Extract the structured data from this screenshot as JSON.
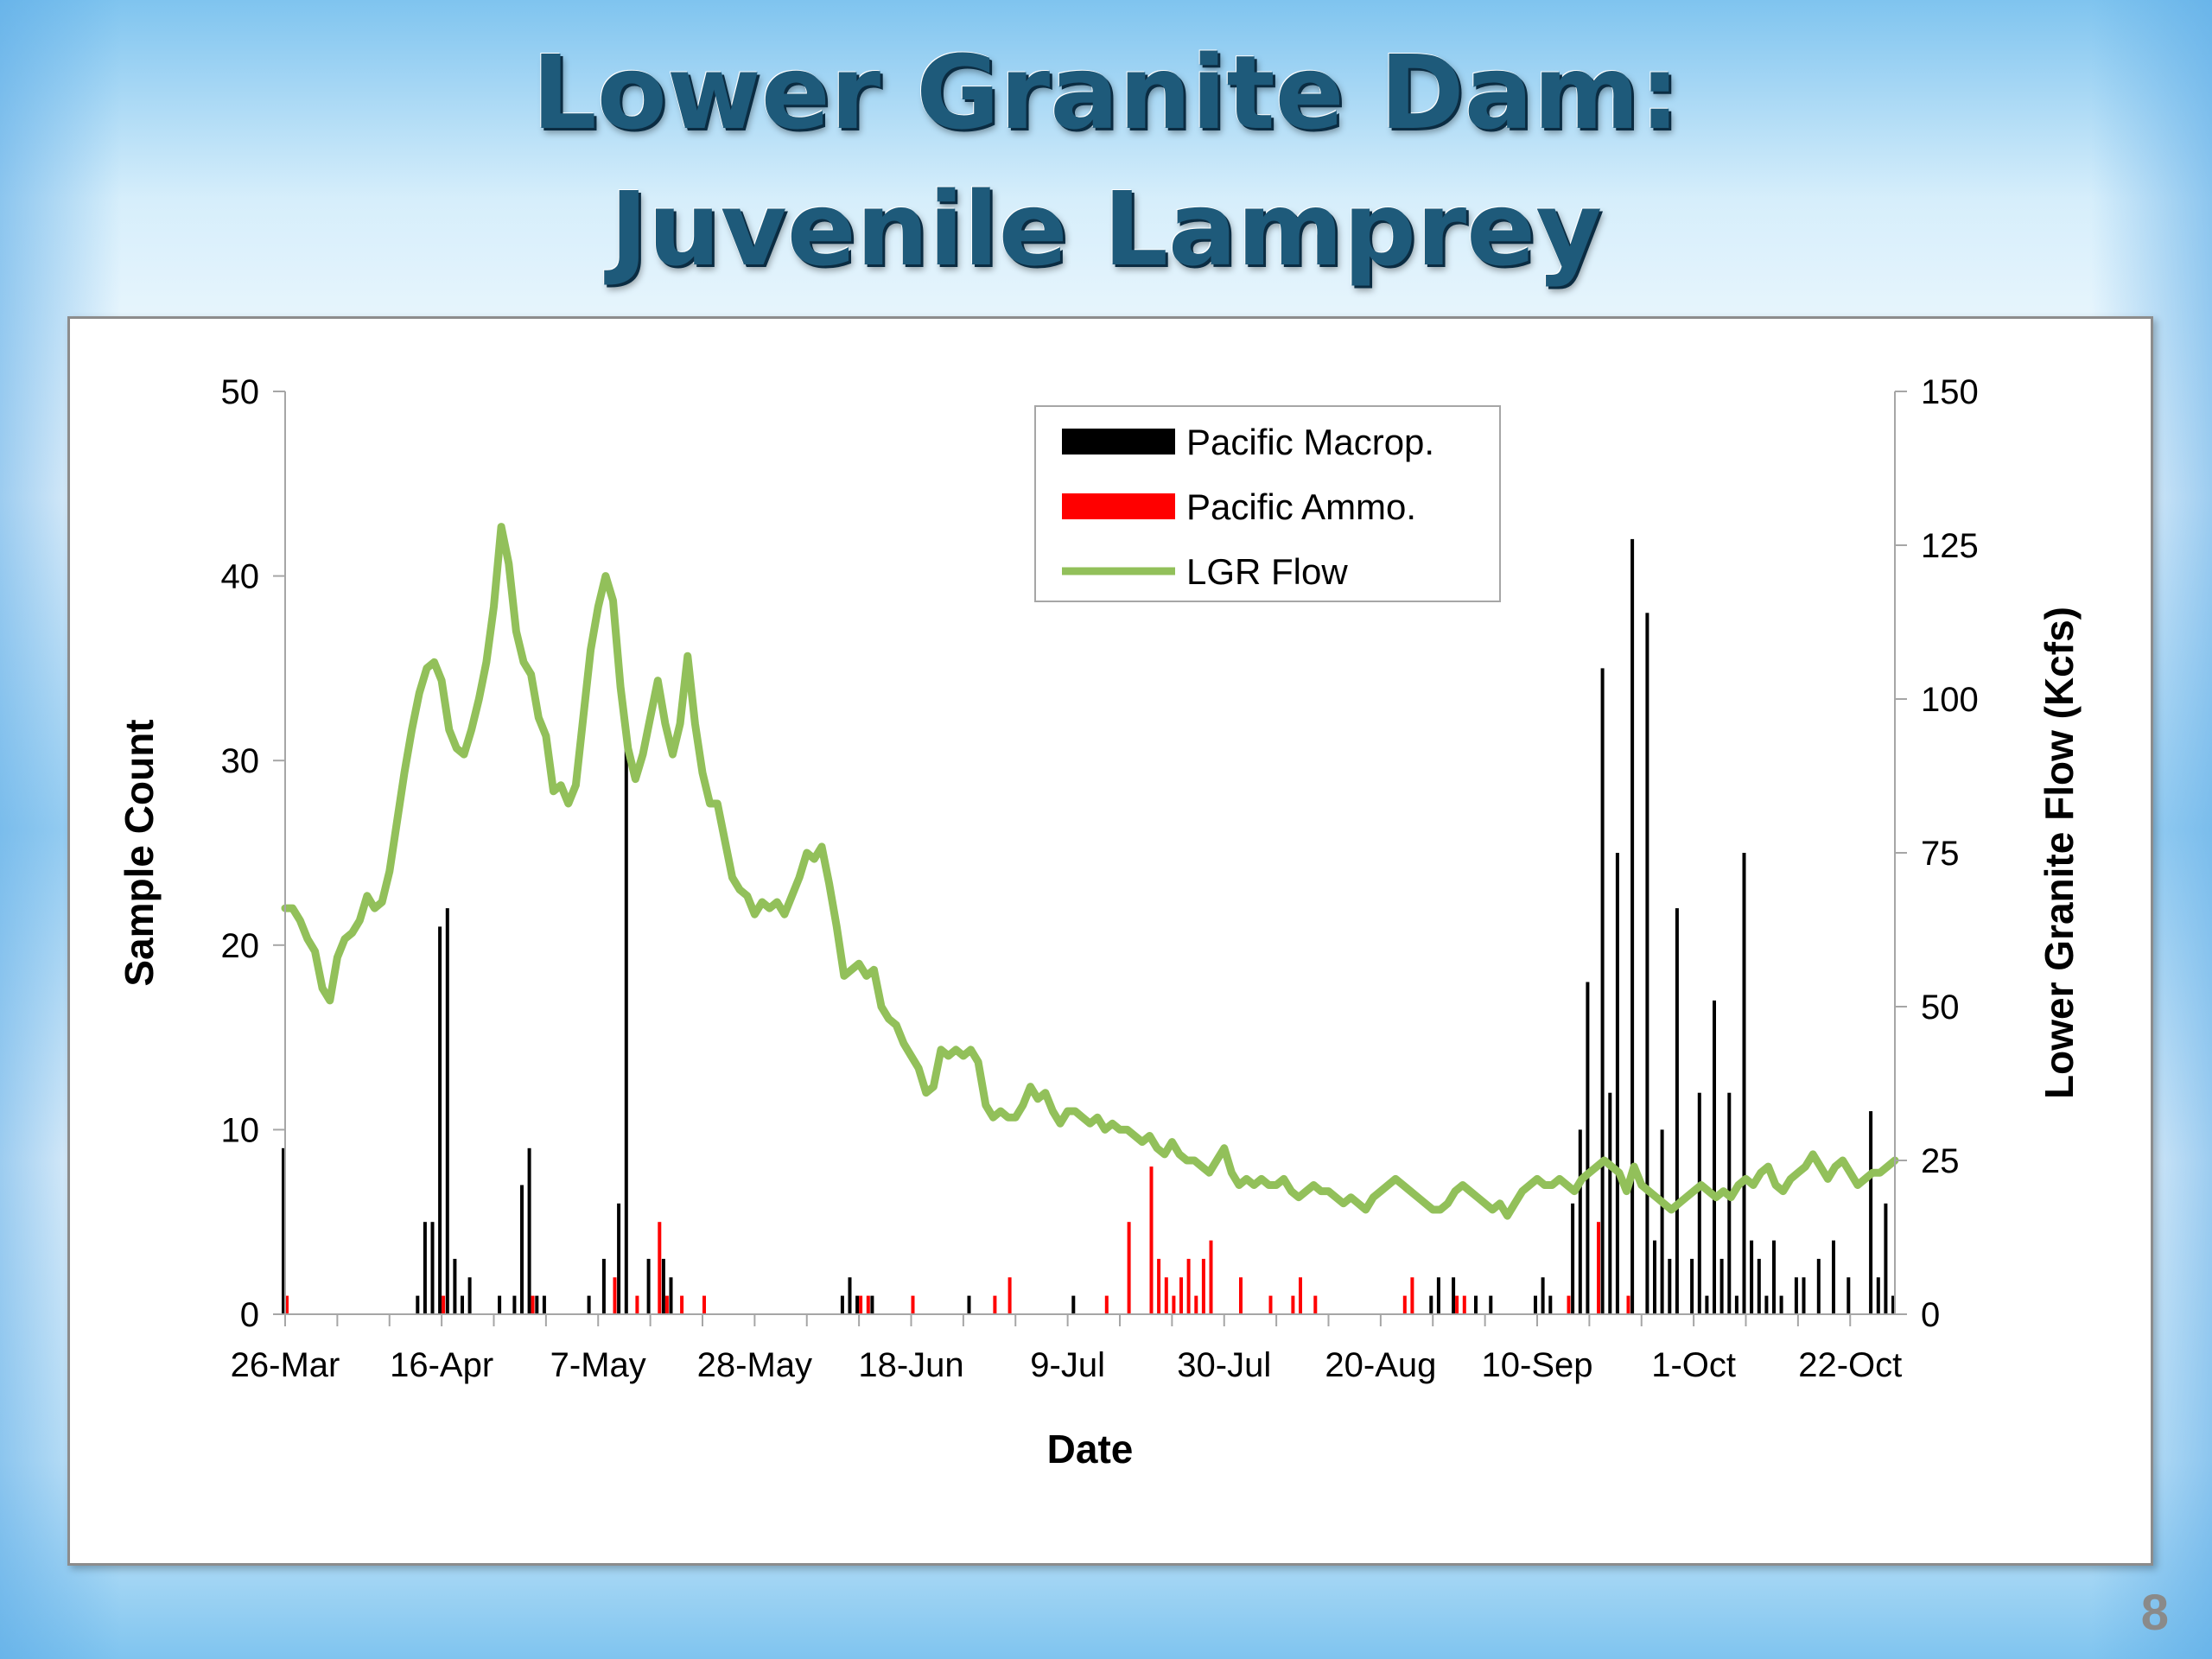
{
  "slide": {
    "title_line1": "Lower Granite Dam:",
    "title_line2": "Juvenile Lamprey",
    "page_number": "8"
  },
  "chart_data": {
    "type": "bar",
    "combo": "bar + line (secondary axis)",
    "xlabel": "Date",
    "ylabel": "Sample Count",
    "y2label": "Lower Granite Flow (Kcfs)",
    "ylim": [
      0,
      50
    ],
    "y2lim": [
      0,
      150
    ],
    "yticks": [
      0,
      10,
      20,
      30,
      40,
      50
    ],
    "y2ticks": [
      0,
      25,
      50,
      75,
      100,
      125,
      150
    ],
    "x_tick_labels": [
      "26-Mar",
      "16-Apr",
      "7-May",
      "28-May",
      "18-Jun",
      "9-Jul",
      "30-Jul",
      "20-Aug",
      "10-Sep",
      "1-Oct",
      "22-Oct"
    ],
    "x_range_days": [
      0,
      216
    ],
    "x_origin_label": "26-Mar",
    "legend_position": "top-center",
    "grid": false,
    "series": [
      {
        "name": "Pacific Macrop.",
        "type": "bar",
        "color": "#000000",
        "points": [
          [
            0,
            9
          ],
          [
            18,
            1
          ],
          [
            19,
            5
          ],
          [
            20,
            5
          ],
          [
            21,
            21
          ],
          [
            22,
            22
          ],
          [
            23,
            3
          ],
          [
            24,
            1
          ],
          [
            25,
            2
          ],
          [
            29,
            1
          ],
          [
            31,
            1
          ],
          [
            32,
            7
          ],
          [
            33,
            9
          ],
          [
            34,
            1
          ],
          [
            35,
            1
          ],
          [
            41,
            1
          ],
          [
            43,
            3
          ],
          [
            45,
            6
          ],
          [
            46,
            32
          ],
          [
            49,
            3
          ],
          [
            51,
            3
          ],
          [
            52,
            2
          ],
          [
            75,
            1
          ],
          [
            76,
            2
          ],
          [
            77,
            1
          ],
          [
            79,
            1
          ],
          [
            92,
            1
          ],
          [
            106,
            1
          ],
          [
            154,
            1
          ],
          [
            155,
            2
          ],
          [
            157,
            2
          ],
          [
            160,
            1
          ],
          [
            162,
            1
          ],
          [
            168,
            1
          ],
          [
            169,
            2
          ],
          [
            170,
            1
          ],
          [
            173,
            6
          ],
          [
            174,
            10
          ],
          [
            175,
            18
          ],
          [
            177,
            35
          ],
          [
            178,
            12
          ],
          [
            179,
            25
          ],
          [
            181,
            42
          ],
          [
            183,
            38
          ],
          [
            184,
            4
          ],
          [
            185,
            10
          ],
          [
            186,
            3
          ],
          [
            187,
            22
          ],
          [
            189,
            3
          ],
          [
            190,
            12
          ],
          [
            191,
            1
          ],
          [
            192,
            17
          ],
          [
            193,
            3
          ],
          [
            194,
            12
          ],
          [
            195,
            1
          ],
          [
            196,
            25
          ],
          [
            197,
            4
          ],
          [
            198,
            3
          ],
          [
            199,
            1
          ],
          [
            200,
            4
          ],
          [
            201,
            1
          ],
          [
            203,
            2
          ],
          [
            204,
            2
          ],
          [
            206,
            3
          ],
          [
            208,
            4
          ],
          [
            210,
            2
          ],
          [
            213,
            11
          ],
          [
            214,
            2
          ],
          [
            215,
            6
          ],
          [
            216,
            1
          ]
        ]
      },
      {
        "name": "Pacific Ammo.",
        "type": "bar",
        "color": "#ff0000",
        "points": [
          [
            0,
            1
          ],
          [
            21,
            1
          ],
          [
            33,
            1
          ],
          [
            44,
            2
          ],
          [
            47,
            1
          ],
          [
            50,
            5
          ],
          [
            51,
            1
          ],
          [
            53,
            1
          ],
          [
            56,
            1
          ],
          [
            77,
            1
          ],
          [
            78,
            1
          ],
          [
            84,
            1
          ],
          [
            95,
            1
          ],
          [
            97,
            2
          ],
          [
            110,
            1
          ],
          [
            113,
            5
          ],
          [
            116,
            8
          ],
          [
            117,
            3
          ],
          [
            118,
            2
          ],
          [
            119,
            1
          ],
          [
            120,
            2
          ],
          [
            121,
            3
          ],
          [
            122,
            1
          ],
          [
            123,
            3
          ],
          [
            124,
            4
          ],
          [
            128,
            2
          ],
          [
            132,
            1
          ],
          [
            135,
            1
          ],
          [
            136,
            2
          ],
          [
            138,
            1
          ],
          [
            150,
            1
          ],
          [
            151,
            2
          ],
          [
            157,
            1
          ],
          [
            158,
            1
          ],
          [
            172,
            1
          ],
          [
            176,
            5
          ],
          [
            180,
            1
          ]
        ]
      },
      {
        "name": "LGR Flow",
        "type": "line",
        "axis": "secondary",
        "color": "#92c05a",
        "points": [
          [
            0,
            66
          ],
          [
            1,
            66
          ],
          [
            2,
            64
          ],
          [
            3,
            61
          ],
          [
            4,
            59
          ],
          [
            5,
            53
          ],
          [
            6,
            51
          ],
          [
            7,
            58
          ],
          [
            8,
            61
          ],
          [
            9,
            62
          ],
          [
            10,
            64
          ],
          [
            11,
            68
          ],
          [
            12,
            66
          ],
          [
            13,
            67
          ],
          [
            14,
            72
          ],
          [
            15,
            80
          ],
          [
            16,
            88
          ],
          [
            17,
            95
          ],
          [
            18,
            101
          ],
          [
            19,
            105
          ],
          [
            20,
            106
          ],
          [
            21,
            103
          ],
          [
            22,
            95
          ],
          [
            23,
            92
          ],
          [
            24,
            91
          ],
          [
            25,
            95
          ],
          [
            26,
            100
          ],
          [
            27,
            106
          ],
          [
            28,
            115
          ],
          [
            29,
            128
          ],
          [
            30,
            122
          ],
          [
            31,
            111
          ],
          [
            32,
            106
          ],
          [
            33,
            104
          ],
          [
            34,
            97
          ],
          [
            35,
            94
          ],
          [
            36,
            85
          ],
          [
            37,
            86
          ],
          [
            38,
            83
          ],
          [
            39,
            86
          ],
          [
            40,
            97
          ],
          [
            41,
            108
          ],
          [
            42,
            115
          ],
          [
            43,
            120
          ],
          [
            44,
            116
          ],
          [
            45,
            102
          ],
          [
            46,
            92
          ],
          [
            47,
            87
          ],
          [
            48,
            91
          ],
          [
            49,
            97
          ],
          [
            50,
            103
          ],
          [
            51,
            96
          ],
          [
            52,
            91
          ],
          [
            53,
            96
          ],
          [
            54,
            107
          ],
          [
            55,
            96
          ],
          [
            56,
            88
          ],
          [
            57,
            83
          ],
          [
            58,
            83
          ],
          [
            59,
            77
          ],
          [
            60,
            71
          ],
          [
            61,
            69
          ],
          [
            62,
            68
          ],
          [
            63,
            65
          ],
          [
            64,
            67
          ],
          [
            65,
            66
          ],
          [
            66,
            67
          ],
          [
            67,
            65
          ],
          [
            68,
            68
          ],
          [
            69,
            71
          ],
          [
            70,
            75
          ],
          [
            71,
            74
          ],
          [
            72,
            76
          ],
          [
            73,
            70
          ],
          [
            74,
            63
          ],
          [
            75,
            55
          ],
          [
            76,
            56
          ],
          [
            77,
            57
          ],
          [
            78,
            55
          ],
          [
            79,
            56
          ],
          [
            80,
            50
          ],
          [
            81,
            48
          ],
          [
            82,
            47
          ],
          [
            83,
            44
          ],
          [
            84,
            42
          ],
          [
            85,
            40
          ],
          [
            86,
            36
          ],
          [
            87,
            37
          ],
          [
            88,
            43
          ],
          [
            89,
            42
          ],
          [
            90,
            43
          ],
          [
            91,
            42
          ],
          [
            92,
            43
          ],
          [
            93,
            41
          ],
          [
            94,
            34
          ],
          [
            95,
            32
          ],
          [
            96,
            33
          ],
          [
            97,
            32
          ],
          [
            98,
            32
          ],
          [
            99,
            34
          ],
          [
            100,
            37
          ],
          [
            101,
            35
          ],
          [
            102,
            36
          ],
          [
            103,
            33
          ],
          [
            104,
            31
          ],
          [
            105,
            33
          ],
          [
            106,
            33
          ],
          [
            107,
            32
          ],
          [
            108,
            31
          ],
          [
            109,
            32
          ],
          [
            110,
            30
          ],
          [
            111,
            31
          ],
          [
            112,
            30
          ],
          [
            113,
            30
          ],
          [
            114,
            29
          ],
          [
            115,
            28
          ],
          [
            116,
            29
          ],
          [
            117,
            27
          ],
          [
            118,
            26
          ],
          [
            119,
            28
          ],
          [
            120,
            26
          ],
          [
            121,
            25
          ],
          [
            122,
            25
          ],
          [
            123,
            24
          ],
          [
            124,
            23
          ],
          [
            125,
            25
          ],
          [
            126,
            27
          ],
          [
            127,
            23
          ],
          [
            128,
            21
          ],
          [
            129,
            22
          ],
          [
            130,
            21
          ],
          [
            131,
            22
          ],
          [
            132,
            21
          ],
          [
            133,
            21
          ],
          [
            134,
            22
          ],
          [
            135,
            20
          ],
          [
            136,
            19
          ],
          [
            137,
            20
          ],
          [
            138,
            21
          ],
          [
            139,
            20
          ],
          [
            140,
            20
          ],
          [
            141,
            19
          ],
          [
            142,
            18
          ],
          [
            143,
            19
          ],
          [
            144,
            18
          ],
          [
            145,
            17
          ],
          [
            146,
            19
          ],
          [
            147,
            20
          ],
          [
            148,
            21
          ],
          [
            149,
            22
          ],
          [
            150,
            21
          ],
          [
            151,
            20
          ],
          [
            152,
            19
          ],
          [
            153,
            18
          ],
          [
            154,
            17
          ],
          [
            155,
            17
          ],
          [
            156,
            18
          ],
          [
            157,
            20
          ],
          [
            158,
            21
          ],
          [
            159,
            20
          ],
          [
            160,
            19
          ],
          [
            161,
            18
          ],
          [
            162,
            17
          ],
          [
            163,
            18
          ],
          [
            164,
            16
          ],
          [
            165,
            18
          ],
          [
            166,
            20
          ],
          [
            167,
            21
          ],
          [
            168,
            22
          ],
          [
            169,
            21
          ],
          [
            170,
            21
          ],
          [
            171,
            22
          ],
          [
            172,
            21
          ],
          [
            173,
            20
          ],
          [
            174,
            22
          ],
          [
            175,
            23
          ],
          [
            176,
            24
          ],
          [
            177,
            25
          ],
          [
            178,
            24
          ],
          [
            179,
            23
          ],
          [
            180,
            20
          ],
          [
            181,
            24
          ],
          [
            182,
            21
          ],
          [
            183,
            20
          ],
          [
            184,
            19
          ],
          [
            185,
            18
          ],
          [
            186,
            17
          ],
          [
            187,
            18
          ],
          [
            188,
            19
          ],
          [
            189,
            20
          ],
          [
            190,
            21
          ],
          [
            191,
            20
          ],
          [
            192,
            19
          ],
          [
            193,
            20
          ],
          [
            194,
            19
          ],
          [
            195,
            21
          ],
          [
            196,
            22
          ],
          [
            197,
            21
          ],
          [
            198,
            23
          ],
          [
            199,
            24
          ],
          [
            200,
            21
          ],
          [
            201,
            20
          ],
          [
            202,
            22
          ],
          [
            203,
            23
          ],
          [
            204,
            24
          ],
          [
            205,
            26
          ],
          [
            206,
            24
          ],
          [
            207,
            22
          ],
          [
            208,
            24
          ],
          [
            209,
            25
          ],
          [
            210,
            23
          ],
          [
            211,
            21
          ],
          [
            212,
            22
          ],
          [
            213,
            23
          ],
          [
            214,
            23
          ],
          [
            215,
            24
          ],
          [
            216,
            25
          ]
        ]
      }
    ]
  }
}
